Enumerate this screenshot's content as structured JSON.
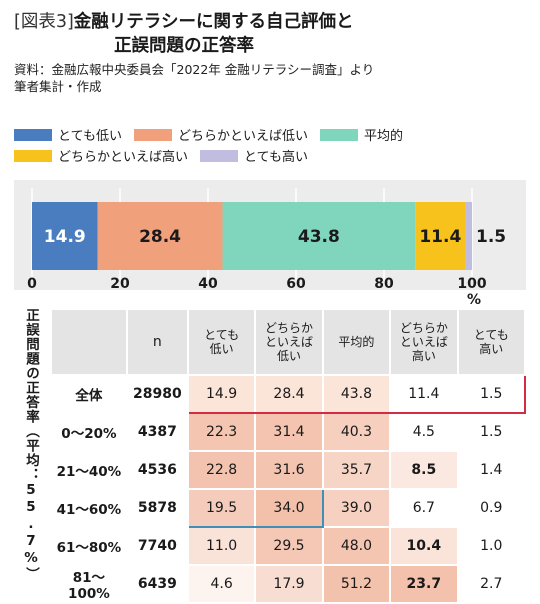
{
  "title": {
    "tag": "[図表3]",
    "line1": "金融リテラシーに関する自己評価と",
    "line2": "正誤問題の正答率"
  },
  "source": {
    "line1": "資料：金融広報中央委員会「2022年 金融リテラシー調査」より",
    "line2": "筆者集計・作成"
  },
  "colors": {
    "very_low": "#4a7cc0",
    "somewhat_low": "#f0a07a",
    "average": "#7fd6bc",
    "somewhat_high": "#f7c21c",
    "very_high": "#c1bde0"
  },
  "chart_data": {
    "type": "bar",
    "orientation": "horizontal-stacked",
    "series": [
      {
        "name": "とても低い",
        "values": [
          14.9
        ]
      },
      {
        "name": "どちらかといえば低い",
        "values": [
          28.4
        ]
      },
      {
        "name": "平均的",
        "values": [
          43.8
        ]
      },
      {
        "name": "どちらかといえば高い",
        "values": [
          11.4
        ]
      },
      {
        "name": "とても高い",
        "values": [
          1.5
        ]
      }
    ],
    "data_labels": [
      "14.9",
      "28.4",
      "43.8",
      "11.4",
      "1.5"
    ],
    "xlim": [
      0,
      100
    ],
    "xticks": [
      "0",
      "20",
      "40",
      "60",
      "80",
      "100"
    ],
    "xunit": "%",
    "grid": true,
    "legend": "top"
  },
  "table": {
    "vertical_label": "正誤問題の正答率（平均：55.7%）",
    "headers": [
      "",
      "n",
      "とても\n低い",
      "どちらか\nといえば\n低い",
      "平均的",
      "どちらか\nといえば\n高い",
      "とても\n高い"
    ],
    "rows": [
      {
        "label": "全体",
        "n": "28980",
        "values": [
          "14.9",
          "28.4",
          "43.8",
          "11.4",
          "1.5"
        ]
      },
      {
        "label": "0〜20%",
        "n": "4387",
        "values": [
          "22.3",
          "31.4",
          "40.3",
          "4.5",
          "1.5"
        ]
      },
      {
        "label": "21〜40%",
        "n": "4536",
        "values": [
          "22.8",
          "31.6",
          "35.7",
          "8.5",
          "1.4"
        ]
      },
      {
        "label": "41〜60%",
        "n": "5878",
        "values": [
          "19.5",
          "34.0",
          "39.0",
          "6.7",
          "0.9"
        ]
      },
      {
        "label": "61〜80%",
        "n": "7740",
        "values": [
          "11.0",
          "29.5",
          "48.0",
          "10.4",
          "1.0"
        ]
      },
      {
        "label": "81〜100%",
        "n": "6439",
        "values": [
          "4.6",
          "17.9",
          "51.2",
          "23.7",
          "2.7"
        ]
      }
    ]
  }
}
